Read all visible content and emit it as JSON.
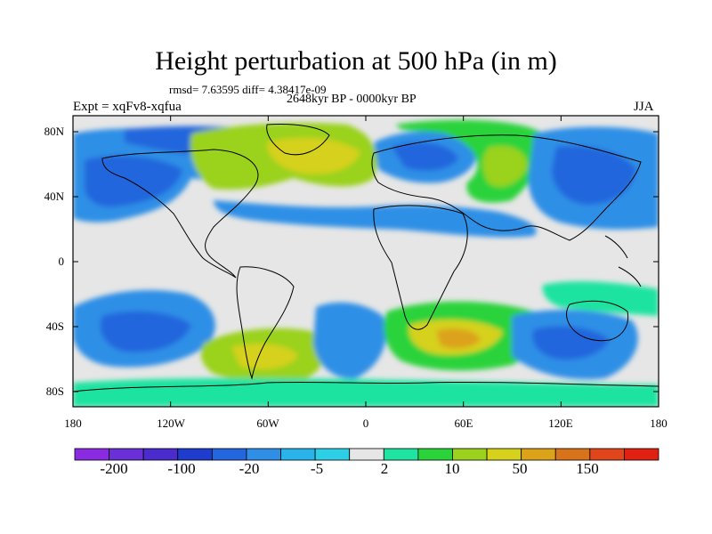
{
  "header": {
    "title": "Height perturbation at 500 hPa (in m)",
    "stats": "rmsd= 7.63595 diff= 4.38417e-09",
    "period": "2648kyr BP - 0000kyr BP",
    "experiment": "Expt = xqFv8-xqfua",
    "season": "JJA"
  },
  "axes": {
    "y_ticks": [
      "80N",
      "40N",
      "0",
      "40S",
      "80S"
    ],
    "x_ticks": [
      "180",
      "120W",
      "60W",
      "0",
      "60E",
      "120E",
      "180"
    ]
  },
  "colorbar": {
    "colors": [
      "#8a2be2",
      "#6a2fd6",
      "#4a2ccc",
      "#1f3ccc",
      "#2466dd",
      "#2f8fe6",
      "#29b3ea",
      "#2dcfe6",
      "#e6e6e6",
      "#1fe3a0",
      "#2bd33b",
      "#9ad21d",
      "#d6d11a",
      "#dca21a",
      "#d9731b",
      "#e0451b",
      "#e02010"
    ],
    "labels": [
      "-200",
      "-100",
      "-20",
      "-5",
      "2",
      "10",
      "50",
      "150"
    ]
  },
  "chart_data": {
    "type": "heatmap",
    "title": "Height perturbation at 500 hPa (in m)",
    "subtitle": "2648kyr BP - 0000kyr BP",
    "variable_units": "m",
    "x_range": [
      -180,
      180
    ],
    "y_range": [
      -90,
      90
    ],
    "season": "JJA",
    "rmsd": 7.63595,
    "diff": 4.38417e-09,
    "contour_levels": [
      -200,
      -100,
      -20,
      -5,
      2,
      10,
      50,
      150
    ]
  }
}
